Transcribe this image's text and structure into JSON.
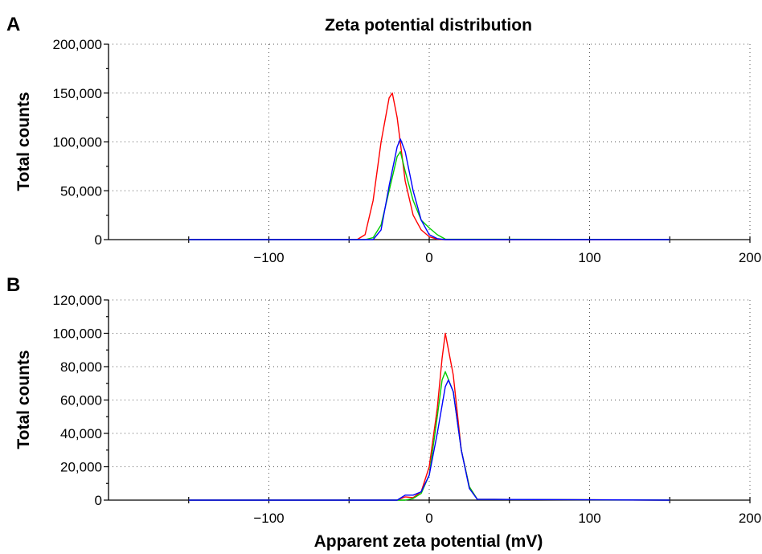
{
  "chart_data": {
    "title": "Zeta potential distribution",
    "xlabel": "Apparent zeta potential (mV)",
    "grid": true,
    "panels": [
      {
        "label": "A",
        "type": "line",
        "ylabel": "Total counts",
        "xlim": [
          -200,
          200
        ],
        "ylim": [
          0,
          200000
        ],
        "x_ticks": [
          -100,
          0,
          100,
          200
        ],
        "x_tick_labels": [
          "−100",
          "0",
          "100",
          "200"
        ],
        "y_ticks": [
          0,
          50000,
          100000,
          150000,
          200000
        ],
        "y_tick_labels": [
          "0",
          "50,000",
          "100,000",
          "150,000",
          "200,000"
        ],
        "series": [
          {
            "color": "#ff0000",
            "x": [
              -150,
              -45,
              -40,
              -35,
              -30,
              -25,
              -23,
              -20,
              -15,
              -10,
              -5,
              0,
              5,
              10,
              150
            ],
            "y": [
              0,
              0,
              5000,
              40000,
              100000,
              145000,
              150000,
              125000,
              60000,
              25000,
              10000,
              3000,
              500,
              0,
              0
            ]
          },
          {
            "color": "#00cc00",
            "x": [
              -150,
              -40,
              -35,
              -30,
              -25,
              -20,
              -18,
              -15,
              -10,
              -5,
              0,
              5,
              10,
              150
            ],
            "y": [
              0,
              0,
              2000,
              15000,
              50000,
              85000,
              90000,
              70000,
              40000,
              20000,
              12000,
              5000,
              500,
              0
            ]
          },
          {
            "color": "#0000ff",
            "x": [
              -150,
              -35,
              -30,
              -25,
              -20,
              -18,
              -15,
              -10,
              -5,
              0,
              5,
              10,
              150
            ],
            "y": [
              0,
              0,
              10000,
              55000,
              95000,
              103000,
              90000,
              50000,
              20000,
              5000,
              1000,
              0,
              0
            ]
          }
        ]
      },
      {
        "label": "B",
        "type": "line",
        "ylabel": "Total counts",
        "xlim": [
          -200,
          200
        ],
        "ylim": [
          0,
          120000
        ],
        "x_ticks": [
          -100,
          0,
          100,
          200
        ],
        "x_tick_labels": [
          "−100",
          "0",
          "100",
          "200"
        ],
        "y_ticks": [
          0,
          20000,
          40000,
          60000,
          80000,
          100000,
          120000
        ],
        "y_tick_labels": [
          "0",
          "20,000",
          "40,000",
          "60,000",
          "80,000",
          "100,000",
          "120,000"
        ],
        "series": [
          {
            "color": "#ff0000",
            "x": [
              -150,
              -20,
              -15,
              -10,
              -5,
              0,
              5,
              8,
              10,
              15,
              20,
              25,
              30,
              150
            ],
            "y": [
              0,
              0,
              2000,
              1500,
              5000,
              20000,
              55000,
              85000,
              100000,
              75000,
              30000,
              8000,
              500,
              0
            ]
          },
          {
            "color": "#00cc00",
            "x": [
              -150,
              -15,
              -10,
              -5,
              0,
              5,
              8,
              10,
              15,
              20,
              25,
              30,
              150
            ],
            "y": [
              0,
              0,
              1000,
              4000,
              15000,
              50000,
              72000,
              77000,
              65000,
              30000,
              8000,
              500,
              0
            ]
          },
          {
            "color": "#0000ff",
            "x": [
              -150,
              -20,
              -15,
              -10,
              -5,
              0,
              5,
              10,
              12,
              15,
              20,
              25,
              30,
              150
            ],
            "y": [
              0,
              0,
              3000,
              3000,
              5000,
              15000,
              40000,
              68000,
              72000,
              65000,
              30000,
              7000,
              500,
              0
            ]
          }
        ]
      }
    ]
  }
}
